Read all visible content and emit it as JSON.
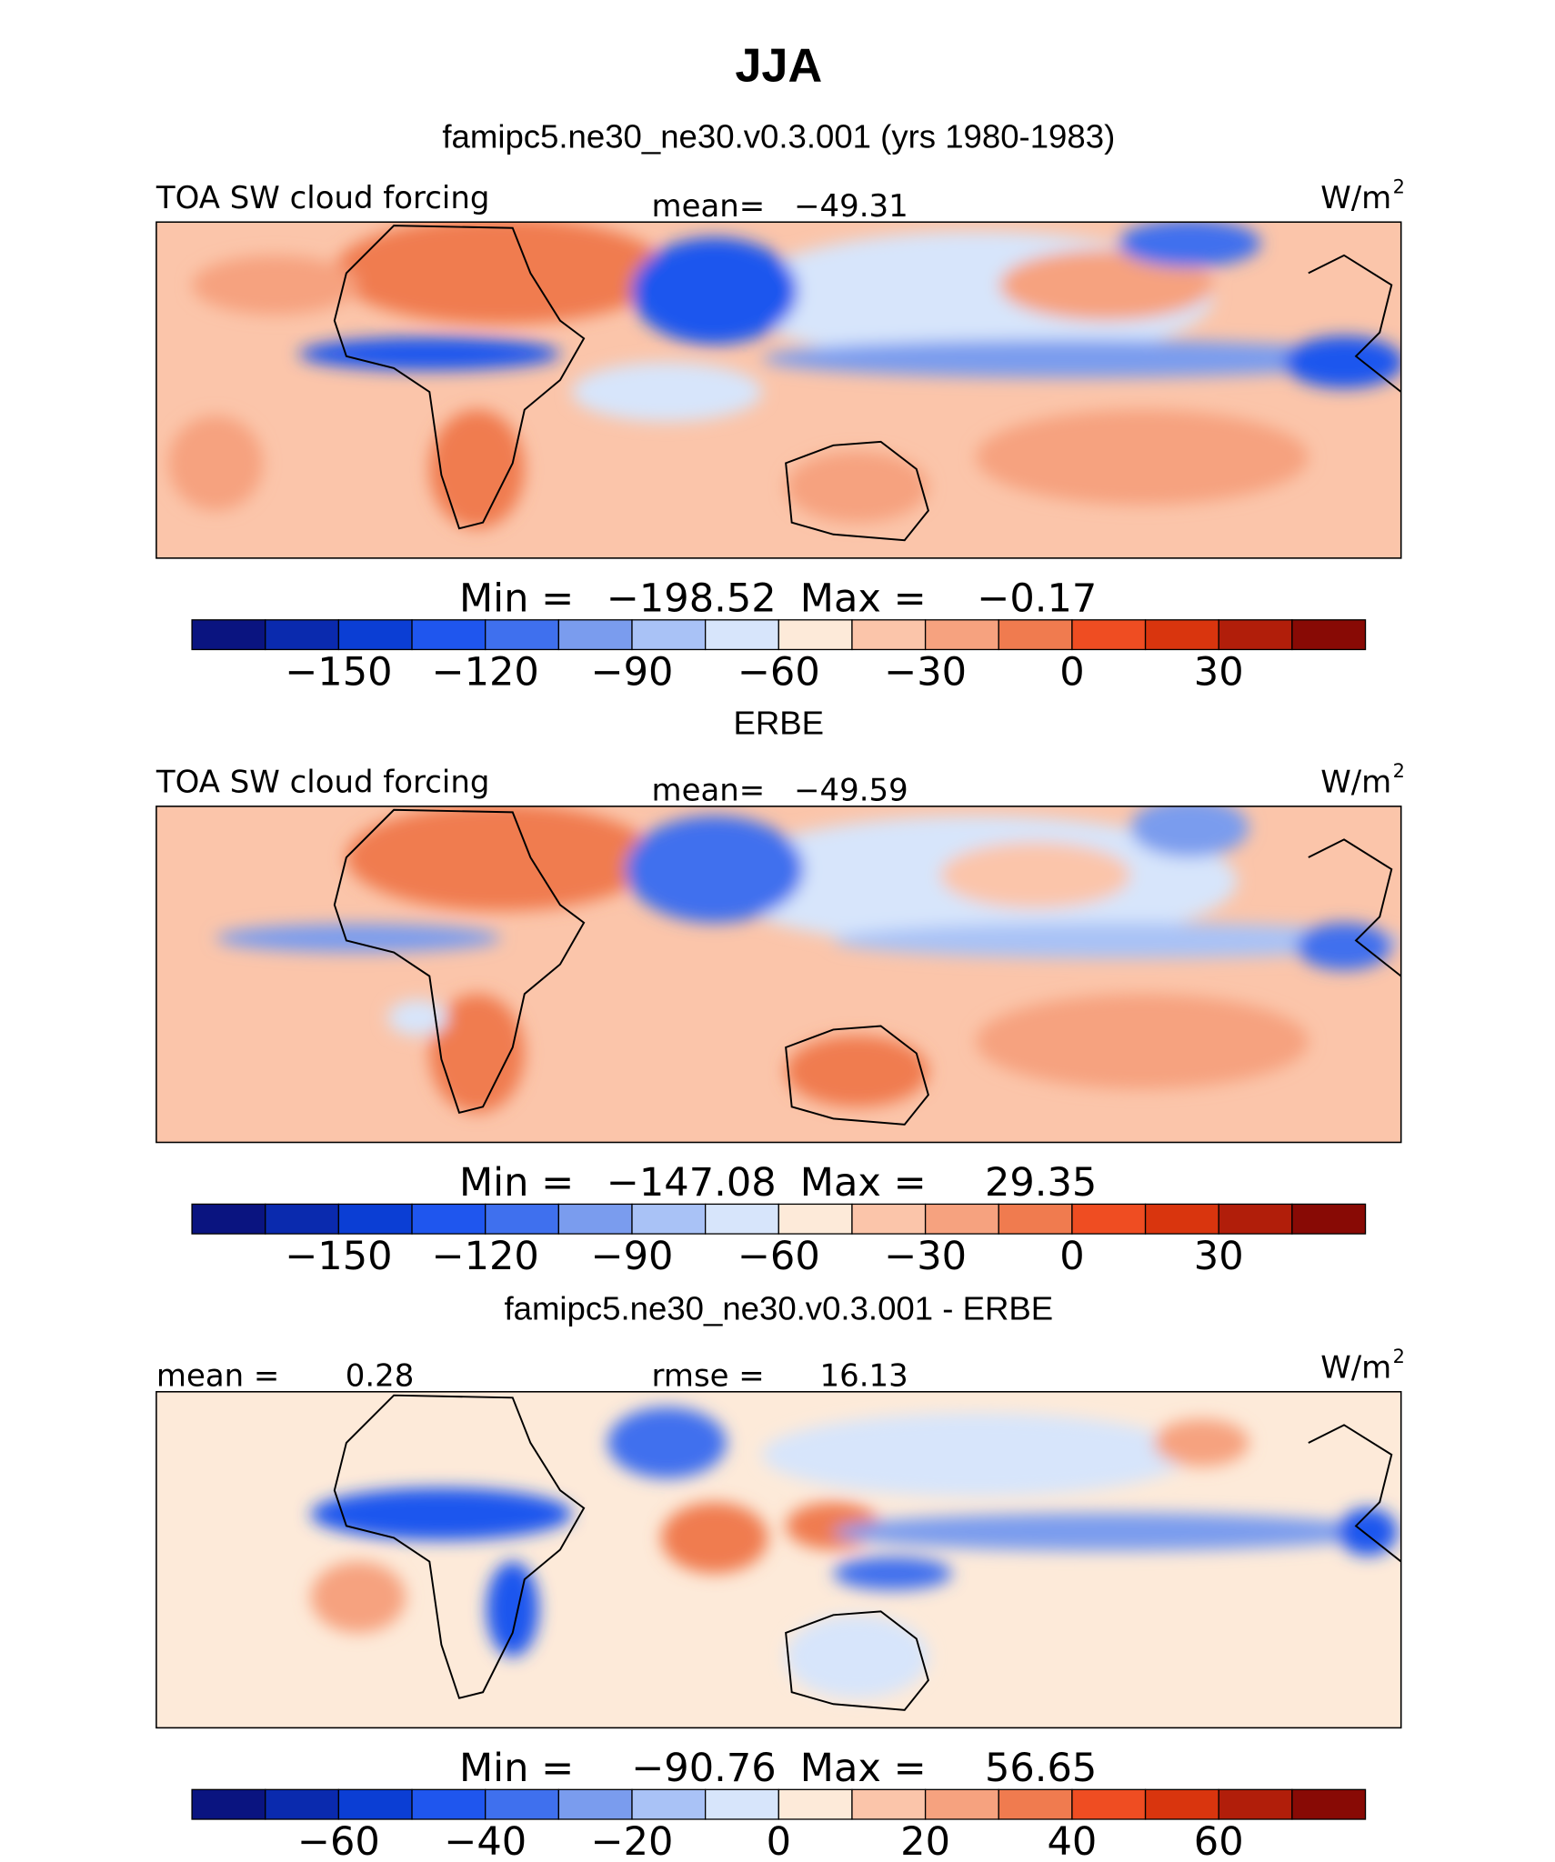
{
  "title": "JJA",
  "subtitle": "famipc5.ne30_ne30.v0.3.001 (yrs 1980-1983)",
  "panels": [
    {
      "left_label": "TOA SW cloud forcing",
      "center_label": "mean=",
      "center_value": "−49.31",
      "units": "W/m",
      "units_exp": "2",
      "min_label": "Min  =",
      "min": "−198.52",
      "max_label": "Max  =",
      "max": "−0.17",
      "colorbar": {
        "colors": [
          "#0a1480",
          "#0a2aae",
          "#0b3ed4",
          "#1f56ee",
          "#3f70ee",
          "#7a9cee",
          "#a9c2f6",
          "#d7e5fb",
          "#fdead9",
          "#fbc5aa",
          "#f6a27f",
          "#f07b4f",
          "#ef4d22",
          "#d9350e",
          "#b11e0a",
          "#880a05"
        ],
        "xlim": [
          -180,
          60
        ],
        "xticks": [
          {
            "value": -150,
            "label": "−150"
          },
          {
            "value": -120,
            "label": "−120"
          },
          {
            "value": -90,
            "label": "−90"
          },
          {
            "value": -60,
            "label": "−60"
          },
          {
            "value": -30,
            "label": "−30"
          },
          0,
          30
        ]
      }
    },
    {
      "heading": "ERBE",
      "left_label": "TOA SW cloud forcing",
      "center_label": "mean=",
      "center_value": "−49.59",
      "units": "W/m",
      "units_exp": "2",
      "min_label": "Min  =",
      "min": "−147.08",
      "max_label": "Max  =",
      "max": "29.35",
      "colorbar": {
        "colors": [
          "#0a1480",
          "#0a2aae",
          "#0b3ed4",
          "#1f56ee",
          "#3f70ee",
          "#7a9cee",
          "#a9c2f6",
          "#d7e5fb",
          "#fdead9",
          "#fbc5aa",
          "#f6a27f",
          "#f07b4f",
          "#ef4d22",
          "#d9350e",
          "#b11e0a",
          "#880a05"
        ],
        "xlim": [
          -180,
          60
        ],
        "xticks": [
          {
            "value": -150,
            "label": "−150"
          },
          {
            "value": -120,
            "label": "−120"
          },
          {
            "value": -90,
            "label": "−90"
          },
          {
            "value": -60,
            "label": "−60"
          },
          {
            "value": -30,
            "label": "−30"
          },
          0,
          30
        ]
      }
    },
    {
      "heading": "famipc5.ne30_ne30.v0.3.001 - ERBE",
      "left_label": "mean =",
      "left_value": "0.28",
      "center_label": "rmse =",
      "center_value": "16.13",
      "units": "W/m",
      "units_exp": "2",
      "min_label": "Min  =",
      "min": "−90.76",
      "max_label": "Max  =",
      "max": "56.65",
      "colorbar": {
        "colors": [
          "#0a1480",
          "#0a2aae",
          "#0b3ed4",
          "#1f56ee",
          "#3f70ee",
          "#7a9cee",
          "#a9c2f6",
          "#d7e5fb",
          "#fdead9",
          "#fbc5aa",
          "#f6a27f",
          "#f07b4f",
          "#ef4d22",
          "#d9350e",
          "#b11e0a",
          "#880a05"
        ],
        "xlim": [
          -80,
          80
        ],
        "xticks": [
          {
            "value": -60,
            "label": "−60"
          },
          {
            "value": -40,
            "label": "−40"
          },
          {
            "value": -20,
            "label": "−20"
          },
          0,
          20,
          40,
          60
        ]
      }
    }
  ]
}
